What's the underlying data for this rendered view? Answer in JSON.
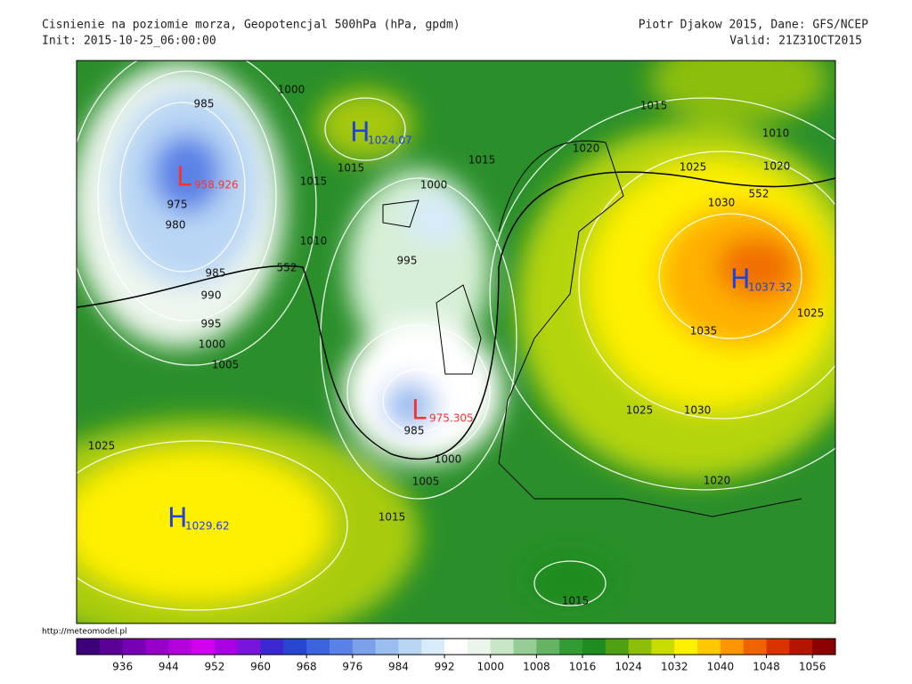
{
  "header": {
    "title": "Cisnienie na poziomie morza, Geopotencjal 500hPa (hPa, gpdm)",
    "init": "Init: 2015-10-25_06:00:00",
    "credit": "Piotr Djakow 2015, Dane: GFS/NCEP",
    "valid": "Valid: 21Z31OCT2015"
  },
  "map": {
    "centers": [
      {
        "letter": "L",
        "value": "958.926",
        "color": "#ff3030"
      },
      {
        "letter": "H",
        "value": "1024.07",
        "color": "#2040e0"
      },
      {
        "letter": "L",
        "value": "975.305",
        "color": "#ff3030"
      },
      {
        "letter": "H",
        "value": "1029.62",
        "color": "#2040e0"
      },
      {
        "letter": "H",
        "value": "1037.32",
        "color": "#2040e0"
      }
    ],
    "isobar_labels": [
      "1000",
      "985",
      "975",
      "980",
      "985",
      "990",
      "995",
      "1000",
      "1005",
      "1015",
      "1015",
      "1010",
      "552",
      "1000",
      "995",
      "985",
      "1000",
      "1005",
      "1015",
      "1025",
      "1015",
      "1020",
      "1015",
      "1025",
      "1010",
      "1020",
      "552",
      "1030",
      "1025",
      "1035",
      "1025",
      "1030",
      "1020",
      "1015"
    ]
  },
  "footer": {
    "url": "http://meteomodel.pl"
  },
  "colorbar": {
    "lim": [
      928,
      1060
    ],
    "ticks": [
      936,
      944,
      952,
      960,
      968,
      976,
      984,
      992,
      1000,
      1008,
      1016,
      1024,
      1032,
      1040,
      1048,
      1056
    ],
    "colors": [
      "#3c0078",
      "#5a0096",
      "#7800b4",
      "#9600c8",
      "#b400dc",
      "#d200f0",
      "#aa00e6",
      "#7814dc",
      "#3c28d2",
      "#2846d2",
      "#3c64dc",
      "#5a82e6",
      "#7da0eb",
      "#9bbef0",
      "#b9d7f5",
      "#d7ebfa",
      "#ffffff",
      "#ebf5eb",
      "#c8e6c8",
      "#96cd96",
      "#64b464",
      "#329b32",
      "#1e8c1e",
      "#50a014",
      "#8cbe0a",
      "#c8dc00",
      "#fff000",
      "#ffc800",
      "#ff9600",
      "#f06400",
      "#dc3200",
      "#b41400",
      "#8c0000"
    ]
  }
}
